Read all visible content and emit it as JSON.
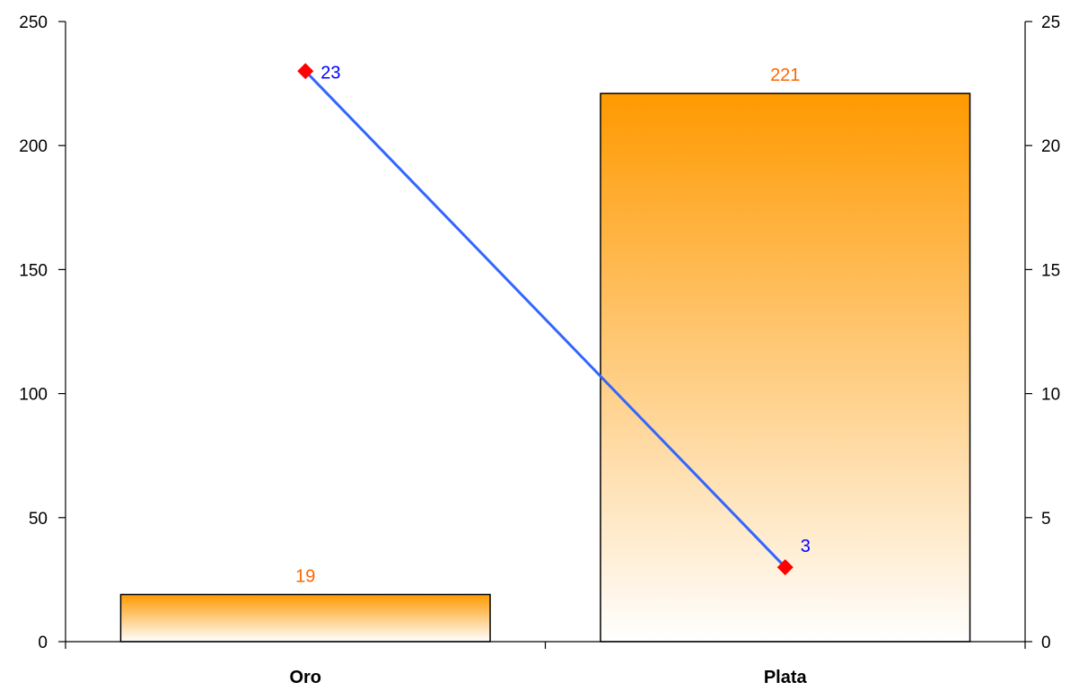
{
  "chart_data": {
    "type": "bar",
    "categories": [
      "Oro",
      "Plata"
    ],
    "series": [
      {
        "type": "bar",
        "axis": "left",
        "values": [
          19,
          221
        ],
        "color": "#FF9900",
        "label_color": "#FF6600"
      },
      {
        "type": "line",
        "axis": "right",
        "values": [
          23,
          3
        ],
        "color": "#3366FF",
        "marker": "diamond",
        "marker_color": "#FF0000",
        "label_color": "#0000FF"
      }
    ],
    "y_left": {
      "min": 0,
      "max": 250,
      "ticks": [
        "0",
        "50",
        "100",
        "150",
        "200",
        "250"
      ]
    },
    "y_right": {
      "min": 0,
      "max": 25,
      "ticks": [
        "0",
        "5",
        "10",
        "15",
        "20",
        "25"
      ]
    },
    "grid": false,
    "legend": "none"
  }
}
